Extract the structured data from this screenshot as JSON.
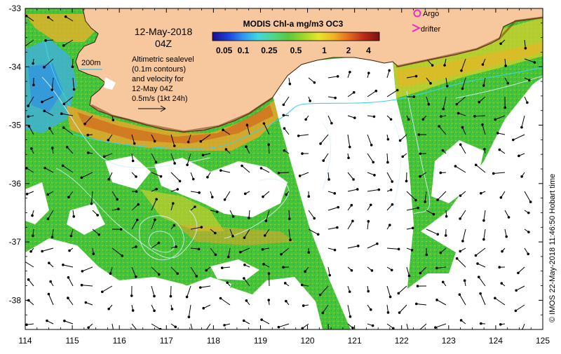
{
  "colorbar": {
    "title": "MODIS Chl-a mg/m3 OC3",
    "ticks": [
      "0.05",
      "0.1",
      "0.25",
      "0.5",
      "1",
      "2",
      "4"
    ],
    "gradient": [
      "#1a0f8f",
      "#1b3fd6",
      "#2f95ef",
      "#3fd7e0",
      "#52d68a",
      "#5bc83c",
      "#9fd62a",
      "#e8e52a",
      "#f0b224",
      "#e36a1c",
      "#b8281a",
      "#7a1410"
    ]
  },
  "header": {
    "date": "12-May-2018",
    "time": "04Z"
  },
  "legend": {
    "argo": "Argo",
    "drifter": "drifter",
    "argo_color": "#e62fc8",
    "drifter_color": "#e62fc8"
  },
  "annotations": {
    "isobath": "200m",
    "isobath_color": "#3fd0e6",
    "sealevel_lines": [
      "Altimetric sealevel",
      "(0.1m contours)",
      "and velocity for",
      "12-May 04Z",
      "0.5m/s (1kt 24h)"
    ]
  },
  "credit": "© IMOS 22-May-2018 11:46:50 Hobart time",
  "axes": {
    "x_ticks": [
      "114",
      "115",
      "116",
      "117",
      "118",
      "119",
      "120",
      "121",
      "122",
      "123",
      "124",
      "125"
    ],
    "y_ticks": [
      "-33",
      "-34",
      "-35",
      "-36",
      "-37",
      "-38"
    ],
    "lon_range": [
      114,
      125
    ],
    "lat_range": [
      -38.5,
      -33
    ]
  },
  "colors": {
    "land": "#f7c79d",
    "coast_dark": "#2a1608",
    "low_chl": "#3bbf3b",
    "offshore": "#5ed14a",
    "no_data": "#ffffff",
    "vector": "#000000",
    "contour": "#d8f0ff"
  }
}
